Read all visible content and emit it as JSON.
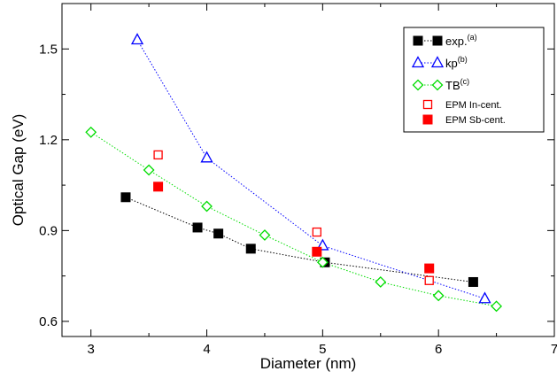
{
  "chart_data": {
    "type": "scatter",
    "title": "",
    "xlabel": "Diameter (nm)",
    "ylabel": "Optical Gap (eV)",
    "xlim": [
      2.75,
      7.0
    ],
    "ylim": [
      0.55,
      1.65
    ],
    "xticks": [
      3,
      4,
      5,
      6,
      7
    ],
    "yticks": [
      0.6,
      0.9,
      1.2,
      1.5
    ],
    "xtick_labels": [
      "3",
      "4",
      "5",
      "6",
      "7"
    ],
    "ytick_labels": [
      "0.6",
      "0.9",
      "1.2",
      "1.5"
    ],
    "grid": false,
    "legend_position": "top-right",
    "series": [
      {
        "key": "exp",
        "name": "exp.",
        "superscript": "(a)",
        "color": "#000000",
        "marker": "filled-square",
        "connected": true,
        "x": [
          3.3,
          3.92,
          4.1,
          4.38,
          5.02,
          6.3
        ],
        "y": [
          1.01,
          0.91,
          0.89,
          0.84,
          0.795,
          0.73
        ]
      },
      {
        "key": "kp",
        "name": "kp",
        "superscript": "(b)",
        "color": "#0000ff",
        "marker": "open-triangle",
        "connected": true,
        "x": [
          3.4,
          4.0,
          5.0,
          6.4
        ],
        "y": [
          1.53,
          1.14,
          0.85,
          0.675
        ]
      },
      {
        "key": "tb",
        "name": "TB",
        "superscript": "(c)",
        "color": "#00dd00",
        "marker": "open-diamond",
        "connected": true,
        "x": [
          3.0,
          3.5,
          4.0,
          4.5,
          5.0,
          5.5,
          6.0,
          6.5
        ],
        "y": [
          1.225,
          1.1,
          0.98,
          0.885,
          0.795,
          0.73,
          0.685,
          0.65
        ]
      },
      {
        "key": "in",
        "name": "EPM In-cent.",
        "superscript": "",
        "color": "#ff0000",
        "marker": "open-square",
        "connected": false,
        "x": [
          3.58,
          4.95,
          5.92
        ],
        "y": [
          1.15,
          0.895,
          0.735
        ]
      },
      {
        "key": "sb",
        "name": "EPM Sb-cent.",
        "superscript": "",
        "color": "#ff0000",
        "marker": "filled-square",
        "connected": false,
        "x": [
          3.58,
          4.95,
          5.92
        ],
        "y": [
          1.045,
          0.83,
          0.775
        ]
      }
    ]
  }
}
